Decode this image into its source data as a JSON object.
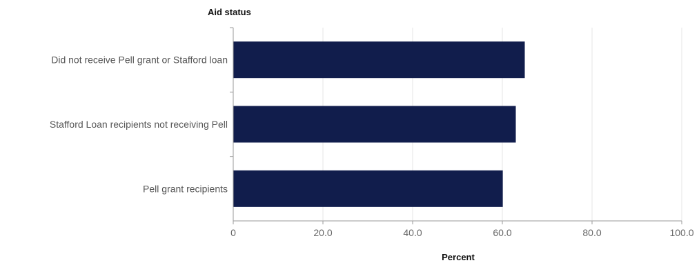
{
  "chart_data": {
    "type": "bar",
    "orientation": "horizontal",
    "y_axis_title": "Aid status",
    "xlabel": "Percent",
    "categories": [
      "Did not receive Pell grant or Stafford loan",
      "Stafford Loan recipients not receiving Pell",
      "Pell grant recipients"
    ],
    "values": [
      65,
      63,
      60.1
    ],
    "xlim": [
      0,
      100
    ],
    "xticks": [
      "0",
      "20.0",
      "40.0",
      "60.0",
      "80.0",
      "100.0"
    ],
    "xtick_values": [
      0,
      20,
      40,
      60,
      80,
      100
    ],
    "grid": "vertical",
    "bar_color": "#111d4c",
    "grid_color": "#e6e6e6",
    "axis_color": "#999999"
  }
}
